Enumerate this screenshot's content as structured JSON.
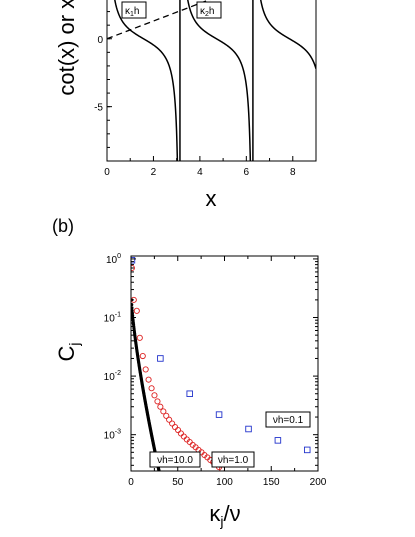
{
  "chart_data": [
    {
      "type": "line",
      "panel_label": "",
      "xlabel": "x",
      "ylabel": "cot(x) or x/(",
      "xlim": [
        0,
        9
      ],
      "ylim": [
        -9,
        3
      ],
      "xticks": [
        "0",
        "2",
        "4",
        "6",
        "8"
      ],
      "yticks": [
        "-5",
        "0"
      ],
      "series": [
        {
          "function": "cot(x)",
          "style": "solid",
          "color": "#000000"
        },
        {
          "function": "x/(nu h)",
          "style": "dashed",
          "color": "#000000"
        }
      ],
      "verticals": [
        3.14159,
        6.28318
      ],
      "annotations": [
        {
          "text": "κ",
          "sub": "1",
          "suffix": "h",
          "x": 1.1
        },
        {
          "text": "κ",
          "sub": "2",
          "suffix": "h",
          "x": 4.45
        }
      ]
    },
    {
      "type": "scatter",
      "panel_label": "(b)",
      "xlabel": "κ",
      "xlabel_sub": "j",
      "xlabel_suffix": "/ν",
      "ylabel": "C",
      "ylabel_sub": "j",
      "xlim": [
        0,
        200
      ],
      "ylim_log10": [
        -3.62,
        0.05
      ],
      "scale_y": "log",
      "xticks": [
        "0",
        "50",
        "100",
        "150",
        "200"
      ],
      "yticks": [
        {
          "base": "10",
          "exp": "0"
        },
        {
          "base": "10",
          "exp": "-1"
        },
        {
          "base": "10",
          "exp": "-2"
        },
        {
          "base": "10",
          "exp": "-3"
        }
      ],
      "series": [
        {
          "label": "νh=0.1",
          "marker": "square",
          "color": "#2233cc",
          "x": [
            1,
            31.4,
            62.8,
            94.2,
            125.7,
            157.1,
            188.5
          ],
          "y": [
            0.95,
            0.02,
            0.005,
            0.0022,
            0.00125,
            0.0008,
            0.00055
          ]
        },
        {
          "label": "νh=1.0",
          "marker": "circle",
          "color": "#dd2222",
          "x": [
            1,
            3,
            6.2,
            9.4,
            12.6,
            15.7,
            18.8,
            22,
            25.1,
            28.3,
            31.4,
            34.6,
            37.7,
            40.8,
            44,
            47.1,
            50.3,
            53.4,
            56.5,
            59.7,
            62.8,
            66,
            69.1,
            72.2,
            75.4,
            78.5,
            81.7,
            84.8,
            87.9,
            91.1,
            94.2,
            97.4
          ],
          "y": [
            0.7,
            0.2,
            0.13,
            0.045,
            0.022,
            0.013,
            0.0087,
            0.0062,
            0.0047,
            0.0037,
            0.003,
            0.0025,
            0.0021,
            0.0018,
            0.00155,
            0.00135,
            0.0012,
            0.00105,
            0.00093,
            0.00083,
            0.00075,
            0.00067,
            0.00061,
            0.00055,
            0.0005,
            0.00045,
            0.00041,
            0.00037,
            0.00034,
            0.00031,
            0.00028,
            0.00026
          ]
        },
        {
          "label": "νh=10.0",
          "marker": "filled-circle",
          "color": "#000000",
          "x_start": 0.5,
          "x_end": 30,
          "y_start": 0.2,
          "y_end": 0.00024
        }
      ]
    }
  ]
}
